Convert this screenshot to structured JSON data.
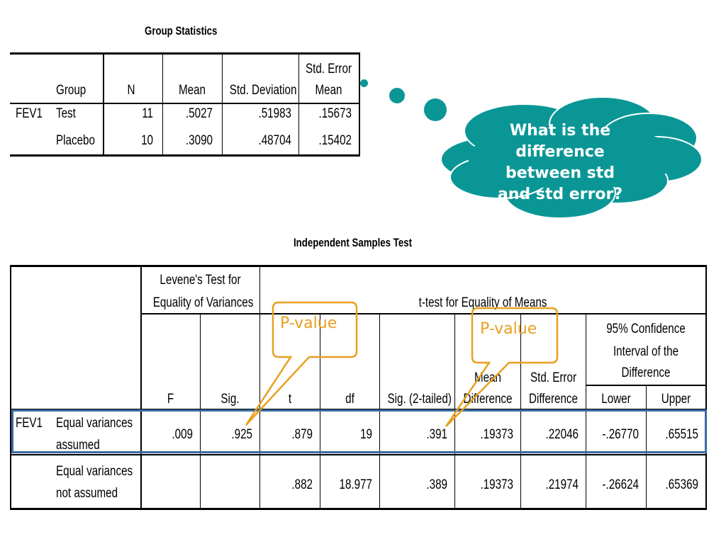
{
  "group_stats": {
    "title": "Group Statistics",
    "headers": {
      "group": "Group",
      "n": "N",
      "mean": "Mean",
      "std_dev": "Std. Deviation",
      "se_line1": "Std. Error",
      "se_line2": "Mean"
    },
    "variable": "FEV1",
    "rows": [
      {
        "group": "Test",
        "n": "11",
        "mean": ".5027",
        "std_dev": ".51983",
        "se": ".15673"
      },
      {
        "group": "Placebo",
        "n": "10",
        "mean": ".3090",
        "std_dev": ".48704",
        "se": ".15402"
      }
    ]
  },
  "ind_test": {
    "title": "Independent Samples Test",
    "levene_line1": "Levene's Test for",
    "levene_line2": "Equality of Variances",
    "ttest_header": "t-test for Equality of Means",
    "ci_line1": "95% Confidence",
    "ci_line2": "Interval of the",
    "ci_line3": "Difference",
    "cols": {
      "f": "F",
      "sig": "Sig.",
      "t": "t",
      "df": "df",
      "sig2": "Sig. (2-tailed)",
      "md_line1": "Mean",
      "md_line2": "Difference",
      "sed_line1": "Std. Error",
      "sed_line2": "Difference",
      "lower": "Lower",
      "upper": "Upper"
    },
    "variable": "FEV1",
    "rows": [
      {
        "label1": "Equal variances",
        "label2": "assumed",
        "f": ".009",
        "sig": ".925",
        "t": ".879",
        "df": "19",
        "sig2": ".391",
        "md": ".19373",
        "sed": ".22046",
        "lower": "-.26770",
        "upper": ".65515"
      },
      {
        "label1": "Equal variances",
        "label2": "not assumed",
        "f": "",
        "sig": "",
        "t": ".882",
        "df": "18.977",
        "sig2": ".389",
        "md": ".19373",
        "sed": ".21974",
        "lower": "-.26624",
        "upper": ".65369"
      }
    ]
  },
  "callouts": {
    "pvalue_1": "P-value",
    "pvalue_2": "P-value"
  },
  "thought_cloud": {
    "line1": "What is the",
    "line2": "difference",
    "line3": "between std",
    "line4": "and std error?"
  },
  "colors": {
    "callout": "#e8a020",
    "cloud": "#0b9696",
    "highlight": "#3a6aa5"
  }
}
